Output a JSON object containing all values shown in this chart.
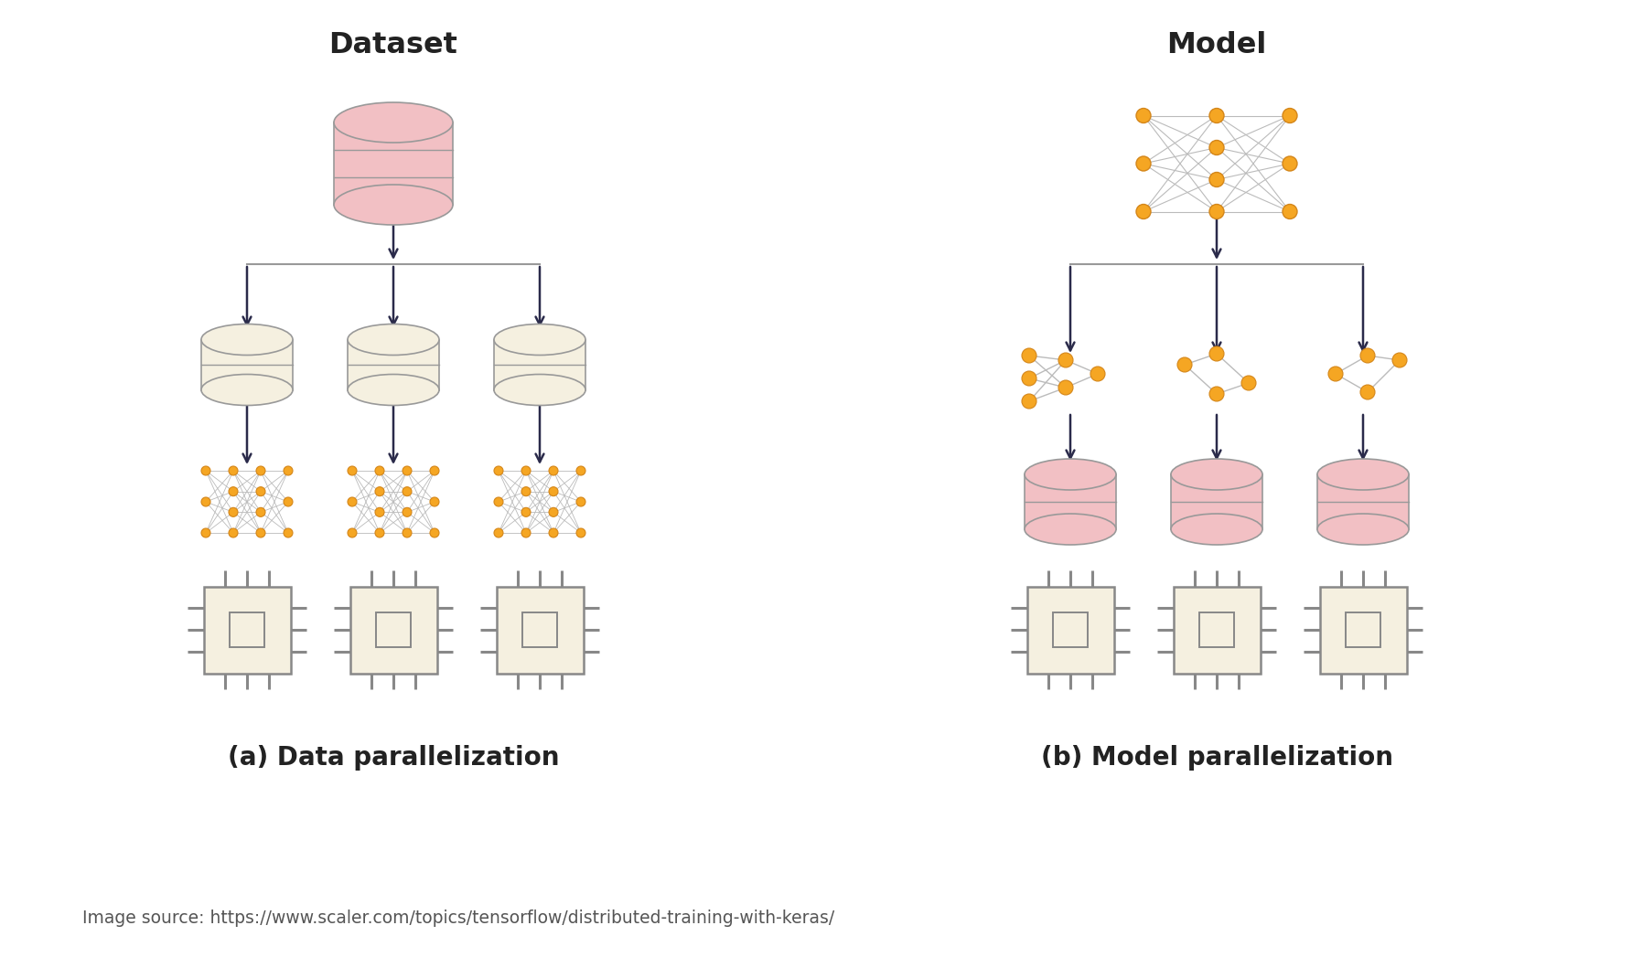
{
  "bg_color": "#ffffff",
  "title_left": "Dataset",
  "title_right": "Model",
  "caption_left": "(a) Data parallelization",
  "caption_right": "(b) Model parallelization",
  "source_text": "Image source: https://www.scaler.com/topics/tensorflow/distributed-training-with-keras/",
  "db_color_large": "#f2c0c4",
  "db_color_small": "#f5f0e0",
  "db_outline": "#999999",
  "cpu_fill": "#f5f0e0",
  "cpu_outline": "#888888",
  "node_color": "#f5a623",
  "node_edge": "#d4861a",
  "line_color": "#bbbbbb",
  "arrow_color": "#2a2a4a",
  "text_color": "#222222",
  "source_color": "#555555"
}
